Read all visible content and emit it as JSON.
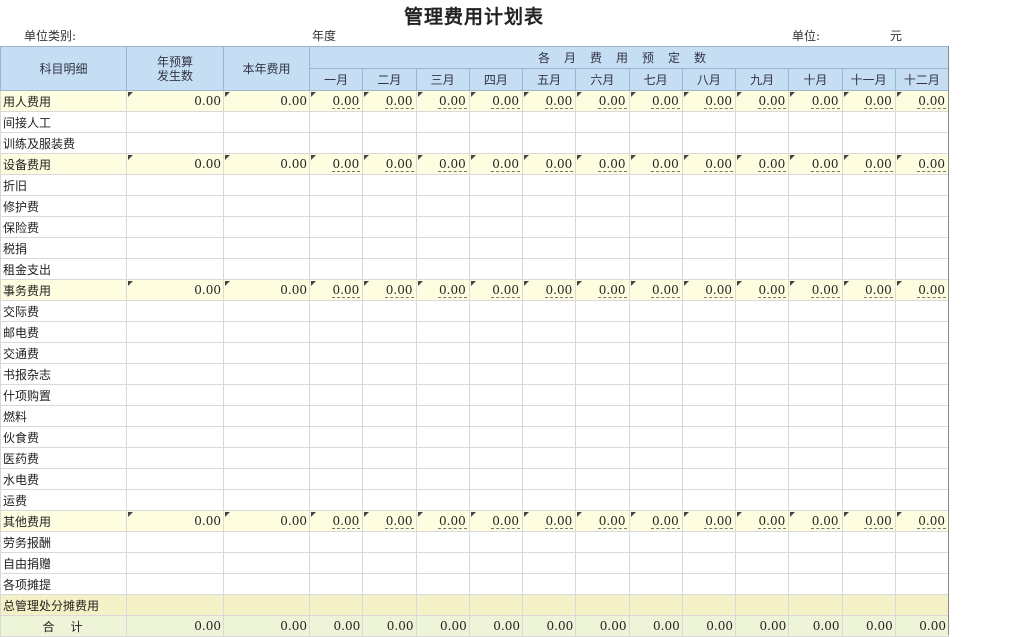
{
  "title": "管理费用计划表",
  "meta": {
    "unit_type_label": "单位类别:",
    "year_label": "年度",
    "unit_label": "单位:",
    "currency": "元"
  },
  "header": {
    "item": "科目明细",
    "prev_year": "年预算\n发生数",
    "this_year": "本年费用",
    "monthly_group": "各月费用预定数",
    "months": [
      "一月",
      "二月",
      "三月",
      "四月",
      "五月",
      "六月",
      "七月",
      "八月",
      "九月",
      "十月",
      "十一月",
      "十二月"
    ]
  },
  "rows": [
    {
      "type": "cat",
      "name": "用人费用",
      "prev": "0.00",
      "total": "0.00",
      "months": [
        "0.00",
        "0.00",
        "0.00",
        "0.00",
        "0.00",
        "0.00",
        "0.00",
        "0.00",
        "0.00",
        "0.00",
        "0.00",
        "0.00"
      ]
    },
    {
      "type": "sub",
      "name": "间接人工"
    },
    {
      "type": "sub",
      "name": "训练及服装费"
    },
    {
      "type": "cat",
      "name": "设备费用",
      "prev": "0.00",
      "total": "0.00",
      "months": [
        "0.00",
        "0.00",
        "0.00",
        "0.00",
        "0.00",
        "0.00",
        "0.00",
        "0.00",
        "0.00",
        "0.00",
        "0.00",
        "0.00"
      ]
    },
    {
      "type": "sub",
      "name": "折旧"
    },
    {
      "type": "sub",
      "name": "修护费"
    },
    {
      "type": "sub",
      "name": "保险费"
    },
    {
      "type": "sub",
      "name": "税捐"
    },
    {
      "type": "sub",
      "name": "租金支出"
    },
    {
      "type": "cat",
      "name": "事务费用",
      "prev": "0.00",
      "total": "0.00",
      "months": [
        "0.00",
        "0.00",
        "0.00",
        "0.00",
        "0.00",
        "0.00",
        "0.00",
        "0.00",
        "0.00",
        "0.00",
        "0.00",
        "0.00"
      ]
    },
    {
      "type": "sub",
      "name": "交际费"
    },
    {
      "type": "sub",
      "name": "邮电费"
    },
    {
      "type": "sub",
      "name": "交通费"
    },
    {
      "type": "sub",
      "name": "书报杂志"
    },
    {
      "type": "sub",
      "name": "什项购置"
    },
    {
      "type": "sub",
      "name": "燃料"
    },
    {
      "type": "sub",
      "name": "伙食费"
    },
    {
      "type": "sub",
      "name": "医药费"
    },
    {
      "type": "sub",
      "name": "水电费"
    },
    {
      "type": "sub",
      "name": "运费"
    },
    {
      "type": "cat",
      "name": "其他费用",
      "prev": "0.00",
      "total": "0.00",
      "months": [
        "0.00",
        "0.00",
        "0.00",
        "0.00",
        "0.00",
        "0.00",
        "0.00",
        "0.00",
        "0.00",
        "0.00",
        "0.00",
        "0.00"
      ]
    },
    {
      "type": "sub",
      "name": "劳务报酬"
    },
    {
      "type": "sub",
      "name": "自由捐赠"
    },
    {
      "type": "sub",
      "name": "各项摊提"
    },
    {
      "type": "summary",
      "name": "总管理处分摊费用"
    },
    {
      "type": "total",
      "name": "合　计",
      "prev": "0.00",
      "total": "0.00",
      "months": [
        "0.00",
        "0.00",
        "0.00",
        "0.00",
        "0.00",
        "0.00",
        "0.00",
        "0.00",
        "0.00",
        "0.00",
        "0.00",
        "0.00"
      ]
    }
  ]
}
